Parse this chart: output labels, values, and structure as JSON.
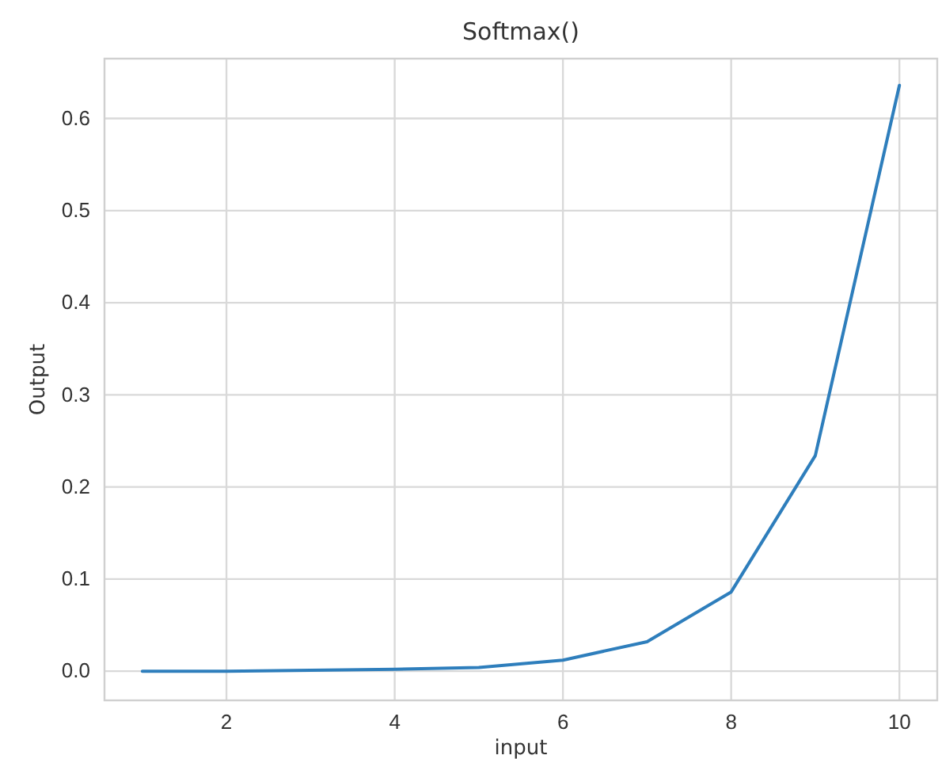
{
  "chart_data": {
    "type": "line",
    "title": "Softmax()",
    "xlabel": "input",
    "ylabel": "Output",
    "x": [
      1,
      2,
      3,
      4,
      5,
      6,
      7,
      8,
      9,
      10
    ],
    "series": [
      {
        "color": "#2e7ebc",
        "values": [
          0,
          0,
          0.001,
          0.002,
          0.004,
          0.012,
          0.032,
          0.086,
          0.234,
          0.636
        ]
      }
    ],
    "xlim": [
      0.55,
      10.45
    ],
    "xticks": [
      2,
      4,
      6,
      8,
      10
    ],
    "ylim": [
      -0.0317,
      0.665
    ],
    "yticks": [
      {
        "value": 0,
        "label": "0.0"
      },
      {
        "value": 0.1,
        "label": "0.1"
      },
      {
        "value": 0.2,
        "label": "0.2"
      },
      {
        "value": 0.3,
        "label": "0.3"
      },
      {
        "value": 0.4,
        "label": "0.4"
      },
      {
        "value": 0.5,
        "label": "0.5"
      },
      {
        "value": 0.6,
        "label": "0.6"
      }
    ],
    "grid": true,
    "marker": "none",
    "line_style": "solid"
  }
}
